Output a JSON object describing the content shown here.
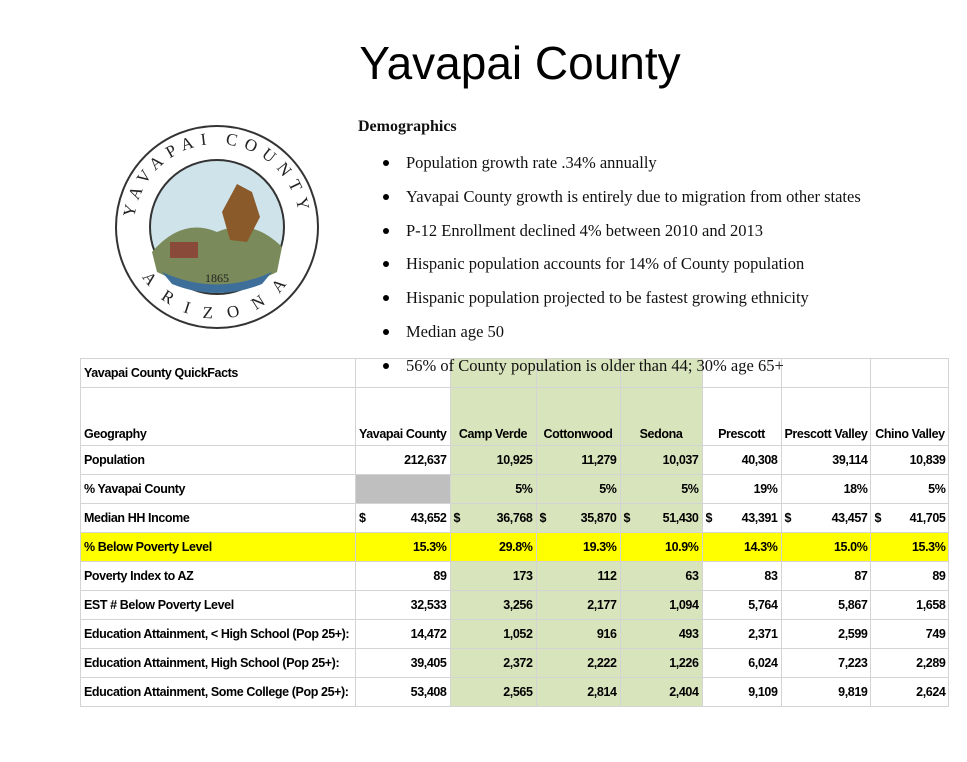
{
  "title": "Yavapai County",
  "seal": {
    "top": "YAVAPAI COUNTY",
    "bottom": "ARIZONA",
    "year": "1865"
  },
  "demographics": {
    "heading": "Demographics",
    "bullets": [
      "Population growth rate .34% annually",
      "Yavapai County growth is entirely due to migration from other states",
      "P-12 Enrollment declined 4% between 2010 and 2013",
      "Hispanic population accounts for 14% of County population",
      "Hispanic population projected to be fastest growing ethnicity",
      "Median age 50",
      "56% of County population is older than 44; 30% age 65+"
    ]
  },
  "table": {
    "title": "Yavapai County QuickFacts",
    "columns": [
      "Geography",
      "Yavapai County",
      "Camp Verde",
      "Cottonwood",
      "Sedona",
      "Prescott",
      "Prescott Valley",
      "Chino Valley"
    ],
    "rows": [
      {
        "label": "Population",
        "cells": [
          "212,637",
          "10,925",
          "11,279",
          "10,037",
          "40,308",
          "39,114",
          "10,839"
        ]
      },
      {
        "label": "% Yavapai County",
        "cells": [
          null,
          "5%",
          "5%",
          "5%",
          "19%",
          "18%",
          "5%"
        ]
      },
      {
        "label": "Median HH Income",
        "currency": "$",
        "cells": [
          "43,652",
          "36,768",
          "35,870",
          "51,430",
          "43,391",
          "43,457",
          "41,705"
        ]
      },
      {
        "label": "% Below Poverty Level",
        "highlight": true,
        "cells": [
          "15.3%",
          "29.8%",
          "19.3%",
          "10.9%",
          "14.3%",
          "15.0%",
          "15.3%"
        ]
      },
      {
        "label": "Poverty Index to AZ",
        "cells": [
          "89",
          "173",
          "112",
          "63",
          "83",
          "87",
          "89"
        ]
      },
      {
        "label": "EST # Below Poverty Level",
        "cells": [
          "32,533",
          "3,256",
          "2,177",
          "1,094",
          "5,764",
          "5,867",
          "1,658"
        ]
      },
      {
        "label": "Education Attainment, < High School (Pop 25+):",
        "cells": [
          "14,472",
          "1,052",
          "916",
          "493",
          "2,371",
          "2,599",
          "749"
        ]
      },
      {
        "label": "Education Attainment, High School (Pop 25+):",
        "cells": [
          "39,405",
          "2,372",
          "2,222",
          "1,226",
          "6,024",
          "7,223",
          "2,289"
        ]
      },
      {
        "label": "Education Attainment, Some College (Pop 25+):",
        "cells": [
          "53,408",
          "2,565",
          "2,814",
          "2,404",
          "9,109",
          "9,819",
          "2,624"
        ]
      }
    ]
  }
}
